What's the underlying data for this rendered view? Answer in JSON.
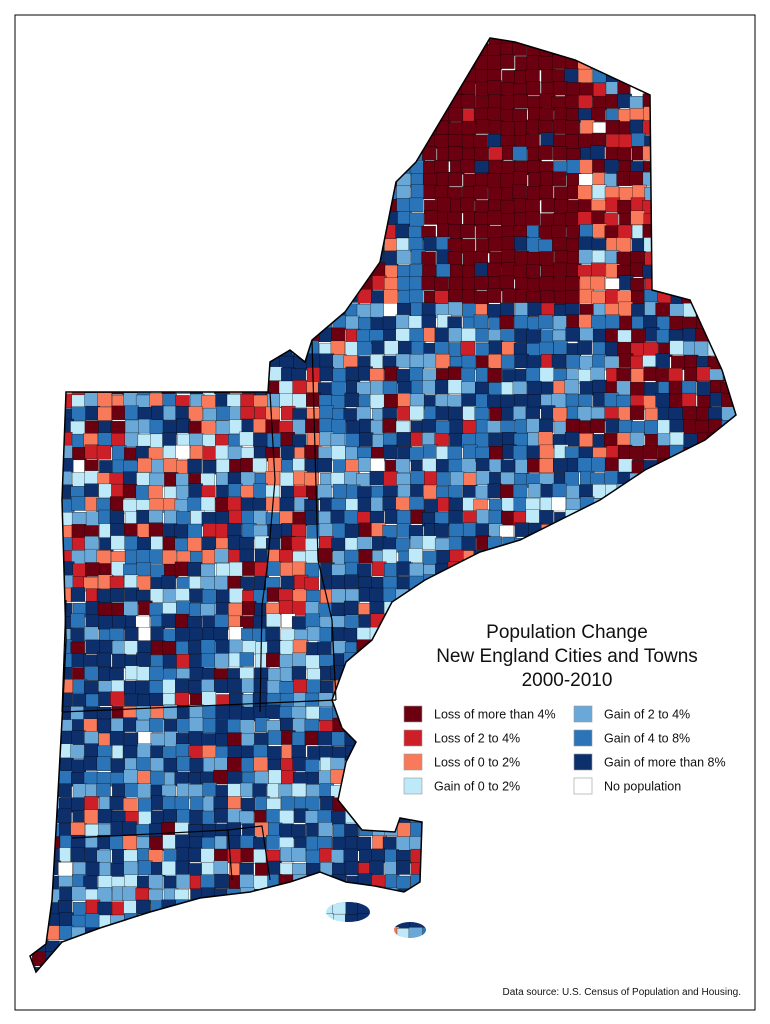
{
  "title": {
    "lines": [
      "Population Change",
      "New England Cities and Towns",
      "2000-2010"
    ]
  },
  "legend": {
    "items": [
      {
        "label": "Loss of more than 4%",
        "color": "#6b0010"
      },
      {
        "label": "Loss of 2 to 4%",
        "color": "#cc1f27"
      },
      {
        "label": "Loss of 0 to 2%",
        "color": "#f97a5a"
      },
      {
        "label": "Gain of 0 to 2%",
        "color": "#bde9f8"
      },
      {
        "label": "Gain of 2 to 4%",
        "color": "#6aa8d8"
      },
      {
        "label": "Gain of 4 to 8%",
        "color": "#2b74b8"
      },
      {
        "label": "Gain of more than 8%",
        "color": "#0d2f6b"
      },
      {
        "label": "No population",
        "color": "#ffffff"
      }
    ]
  },
  "source": "Data source: U.S. Census of Population and Housing."
}
